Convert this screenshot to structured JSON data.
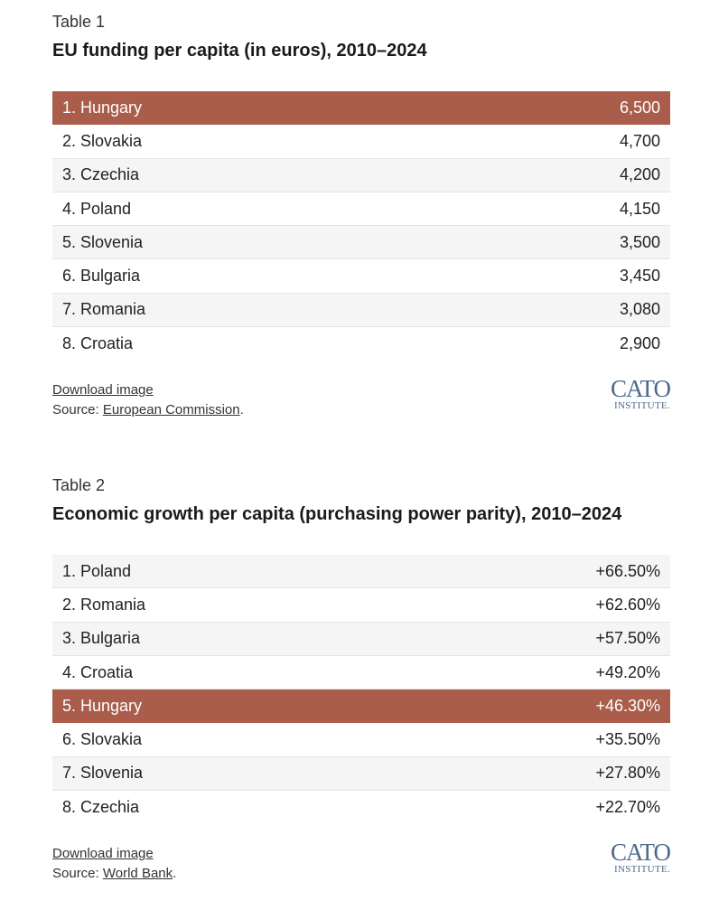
{
  "table1": {
    "label": "Table 1",
    "title": "EU funding per capita (in euros), 2010–2024",
    "rows": [
      {
        "name": "1. Hungary",
        "value": "6,500"
      },
      {
        "name": "2. Slovakia",
        "value": "4,700"
      },
      {
        "name": "3. Czechia",
        "value": "4,200"
      },
      {
        "name": "4. Poland",
        "value": "4,150"
      },
      {
        "name": "5. Slovenia",
        "value": "3,500"
      },
      {
        "name": "6. Bulgaria",
        "value": "3,450"
      },
      {
        "name": "7. Romania",
        "value": "3,080"
      },
      {
        "name": "8. Croatia",
        "value": "2,900"
      }
    ],
    "download": "Download image",
    "source_prefix": "Source: ",
    "source_link": "European Commission",
    "source_suffix": "."
  },
  "table2": {
    "label": "Table 2",
    "title": "Economic growth per capita (purchasing power parity), 2010–2024",
    "rows": [
      {
        "name": "1. Poland",
        "value": "+66.50%"
      },
      {
        "name": "2. Romania",
        "value": "+62.60%"
      },
      {
        "name": "3. Bulgaria",
        "value": "+57.50%"
      },
      {
        "name": "4. Croatia",
        "value": "+49.20%"
      },
      {
        "name": "5. Hungary",
        "value": "+46.30%"
      },
      {
        "name": "6. Slovakia",
        "value": "+35.50%"
      },
      {
        "name": "7. Slovenia",
        "value": "+27.80%"
      },
      {
        "name": "8. Czechia",
        "value": "+22.70%"
      }
    ],
    "download": "Download image",
    "source_prefix": "Source: ",
    "source_link": "World Bank",
    "source_suffix": "."
  },
  "logo": {
    "top": "CATO",
    "bottom": "INSTITUTE."
  },
  "colors": {
    "highlight": "#a95d4a",
    "logo": "#4d6a8c"
  }
}
